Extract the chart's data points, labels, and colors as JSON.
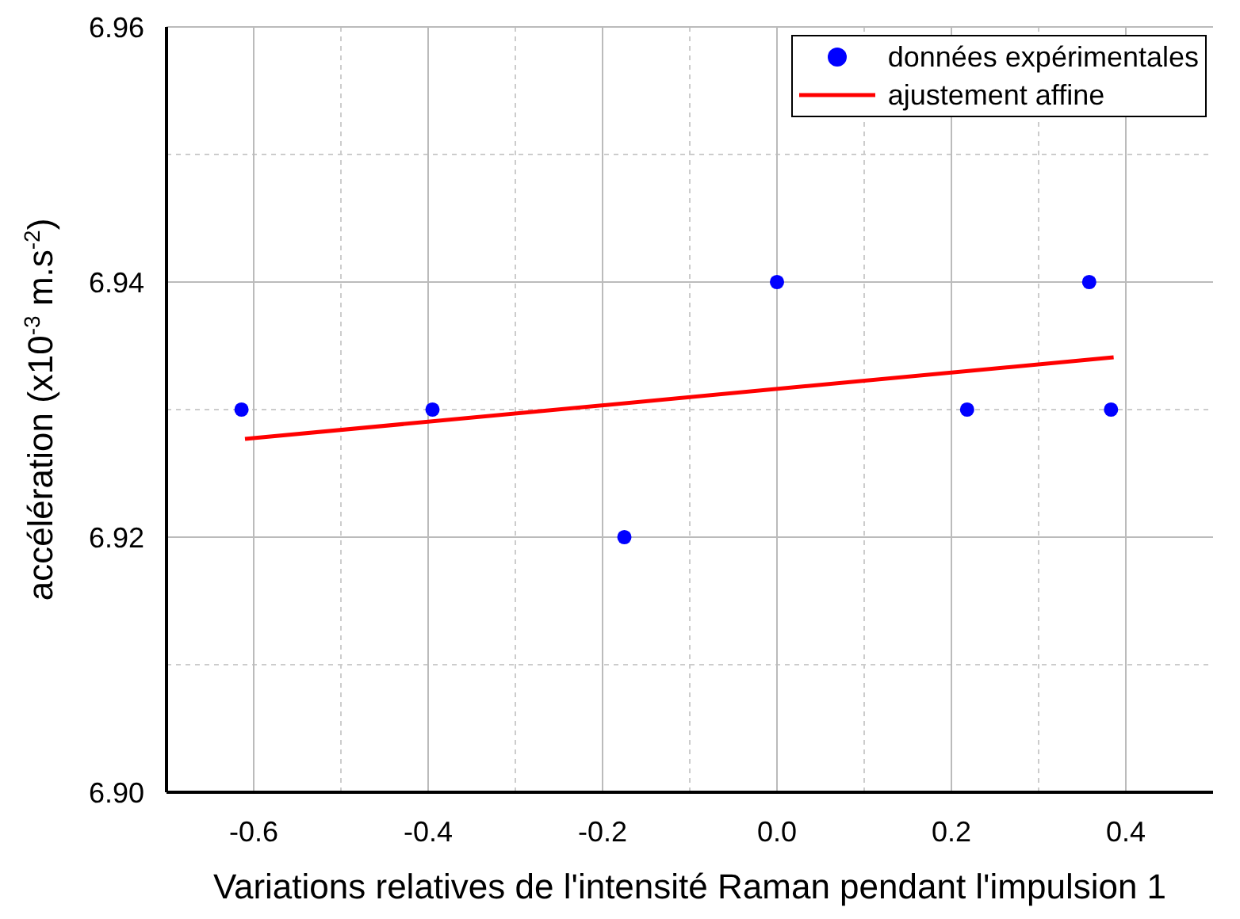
{
  "chart_data": {
    "type": "scatter",
    "xlabel": "Variations relatives de l'intensité Raman pendant l'impulsion 1",
    "ylabel": "accélération (x10$^{-3}$ m.s$^{-2}$)",
    "xlim": [
      -0.7,
      0.5
    ],
    "xticks": [
      -0.6,
      -0.4,
      -0.2,
      {
        "value": 0,
        "label": "0.0"
      },
      0.2,
      0.4
    ],
    "ylim": [
      6.9,
      6.96
    ],
    "yticks": [
      {
        "value": 6.9,
        "label": "6.90"
      },
      {
        "value": 6.91,
        "label": null
      },
      6.92,
      {
        "value": 6.93,
        "label": null
      },
      6.94,
      {
        "value": 6.95,
        "label": null
      },
      6.96
    ],
    "grid": true,
    "legend": "top right",
    "series": [
      {
        "name": "données expérimentales",
        "color": "#0000ff",
        "marker": "circle",
        "x": [
          -0.614,
          -0.395,
          -0.175,
          0.0,
          0.218,
          0.358,
          0.383
        ],
        "values": [
          6.93,
          6.93,
          6.92,
          6.94,
          6.93,
          6.94,
          6.93
        ]
      },
      {
        "name": "ajustement affine",
        "type": "line",
        "color": "#ff0000",
        "marker": "none",
        "line_style": "solid",
        "x": [
          -0.61,
          0.386
        ],
        "values": [
          6.9277,
          6.9341
        ]
      }
    ]
  }
}
